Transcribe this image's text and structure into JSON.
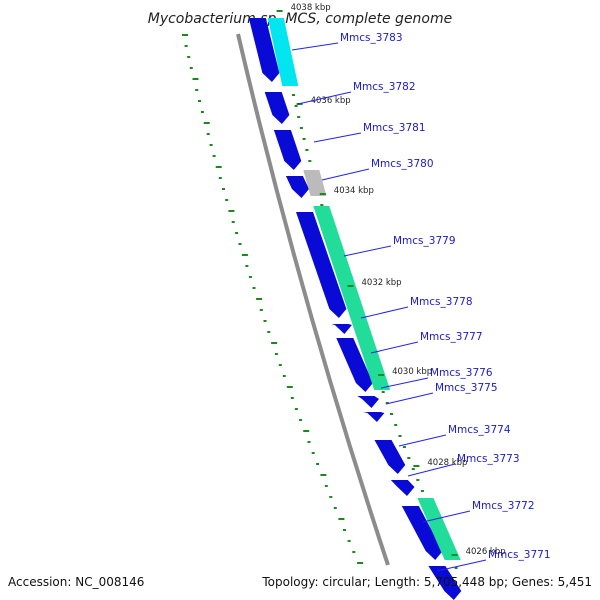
{
  "title": "Mycobacterium sp. MCS, complete genome",
  "footer": {
    "accession": "Accession: NC_008146",
    "summary": "Topology: circular; Length: 5,705,448 bp; Genes: 5,451"
  },
  "kbp_labels": [
    "4038 kbp",
    "4036 kbp",
    "4034 kbp",
    "4032 kbp",
    "4030 kbp",
    "4028 kbp",
    "4026 kbp"
  ],
  "gene_labels": [
    "Mmcs_3783",
    "Mmcs_3782",
    "Mmcs_3781",
    "Mmcs_3780",
    "Mmcs_3779",
    "Mmcs_3778",
    "Mmcs_3777",
    "Mmcs_3776",
    "Mmcs_3775",
    "Mmcs_3774",
    "Mmcs_3773",
    "Mmcs_3772",
    "Mmcs_3771"
  ],
  "colors": {
    "backbone": "#8c8c8c",
    "gene_forward": "#0a0ad6",
    "outer_cyan": "#00e5ee",
    "outer_green": "#22dd99",
    "outer_gray": "#bbbbbb",
    "gc_dash": "#1a8a1a",
    "label_line": "#2222ee",
    "label_text": "#1a1acc"
  }
}
